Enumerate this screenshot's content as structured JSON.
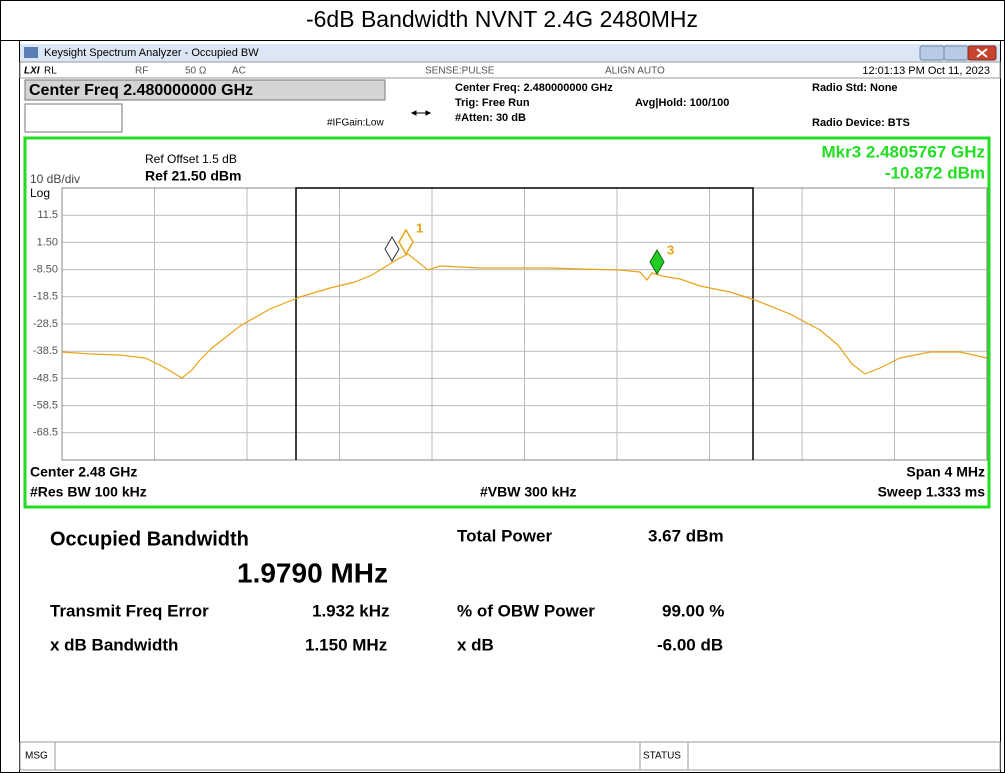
{
  "header": {
    "title": "-6dB Bandwidth NVNT 2.4G 2480MHz"
  },
  "window": {
    "title": "Keysight Spectrum Analyzer - Occupied BW"
  },
  "status_bar": {
    "rl": "RL",
    "rf": "RF",
    "impedance": "50 Ω",
    "coupling": "AC",
    "sense": "SENSE:PULSE",
    "align": "ALIGN AUTO",
    "datetime": "12:01:13 PM Oct 11, 2023"
  },
  "settings": {
    "center_freq_box": "Center Freq 2.480000000 GHz",
    "center_freq": "Center Freq: 2.480000000 GHz",
    "trig": "Trig: Free Run",
    "atten": "#Atten: 30 dB",
    "avg_hold": "Avg|Hold: 100/100",
    "ifgain": "#IFGain:Low",
    "radio_std": "Radio Std: None",
    "radio_device": "Radio Device: BTS"
  },
  "plot": {
    "ref_offset": "Ref Offset 1.5 dB",
    "ref_level": "Ref 21.50 dBm",
    "scale": "10 dB/div",
    "scale_type": "Log",
    "marker_freq": "Mkr3  2.4805767 GHz",
    "marker_level": "-10.872 dBm",
    "y_labels": [
      "11.5",
      "1.50",
      "-8.50",
      "-18.5",
      "-28.5",
      "-38.5",
      "-48.5",
      "-58.5",
      "-68.5"
    ],
    "markers": [
      {
        "label": "1"
      },
      {
        "label": "3"
      }
    ],
    "center": "Center  2.48 GHz",
    "res_bw": "#Res BW  100 kHz",
    "vbw": "#VBW  300 kHz",
    "span": "Span 4 MHz",
    "sweep": "Sweep  1.333 ms"
  },
  "results": {
    "obw_label": "Occupied Bandwidth",
    "obw_value": "1.9790 MHz",
    "total_power_label": "Total Power",
    "total_power_value": "3.67 dBm",
    "freq_error_label": "Transmit Freq Error",
    "freq_error_value": "1.932 kHz",
    "obw_power_label": "% of OBW Power",
    "obw_power_value": "99.00 %",
    "xdb_bw_label": "x dB Bandwidth",
    "xdb_bw_value": "1.150 MHz",
    "xdb_label": "x dB",
    "xdb_value": "-6.00 dB"
  },
  "footer": {
    "msg": "MSG",
    "status": "STATUS"
  }
}
